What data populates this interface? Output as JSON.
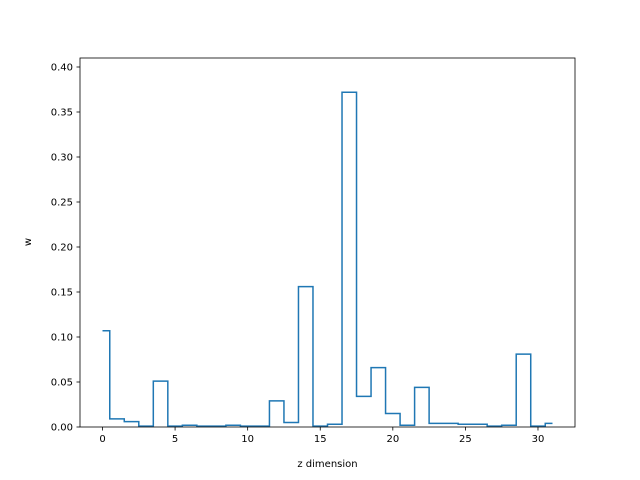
{
  "chart_data": {
    "type": "line",
    "style": "step",
    "title": "",
    "xlabel": "z dimension",
    "ylabel": "w",
    "xlim": [
      -1.55,
      32.55
    ],
    "ylim": [
      0,
      0.41
    ],
    "xticks": [
      0,
      5,
      10,
      15,
      20,
      25,
      30
    ],
    "xtick_labels": [
      "0",
      "5",
      "10",
      "15",
      "20",
      "25",
      "30"
    ],
    "yticks": [
      0,
      0.05,
      0.1,
      0.15,
      0.2,
      0.25,
      0.3,
      0.35,
      0.4
    ],
    "ytick_labels": [
      "0.00",
      "0.05",
      "0.10",
      "0.15",
      "0.20",
      "0.25",
      "0.30",
      "0.35",
      "0.40"
    ],
    "grid": false,
    "legend": false,
    "color": "#1f77b4",
    "series": [
      {
        "x": [
          0,
          1,
          2,
          3,
          4,
          5,
          6,
          7,
          8,
          9,
          10,
          11,
          12,
          13,
          14,
          15,
          16,
          17,
          18,
          19,
          20,
          21,
          22,
          23,
          24,
          25,
          26,
          27,
          28,
          29,
          30,
          31
        ],
        "values": [
          0.107,
          0.009,
          0.006,
          0.001,
          0.051,
          0.001,
          0.002,
          0.001,
          0.001,
          0.002,
          0.001,
          0.001,
          0.029,
          0.005,
          0.156,
          0.001,
          0.003,
          0.372,
          0.034,
          0.066,
          0.015,
          0.002,
          0.044,
          0.004,
          0.004,
          0.003,
          0.003,
          0.001,
          0.002,
          0.081,
          0.001,
          0.004
        ]
      }
    ]
  }
}
